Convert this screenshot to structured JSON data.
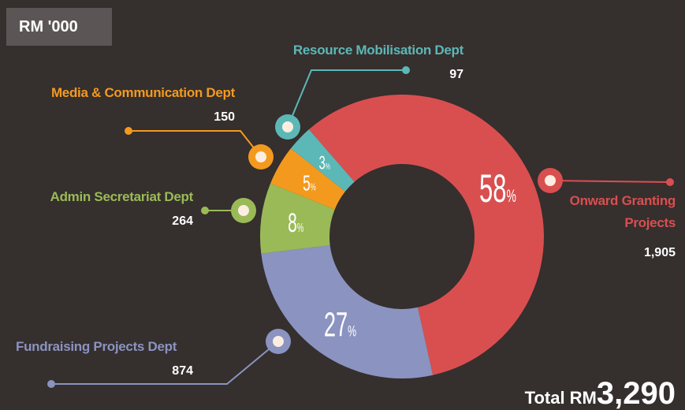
{
  "chart_data": {
    "type": "donut",
    "badge": "RM '000",
    "categories": [
      "Onward Granting Projects",
      "Fundraising Projects Dept",
      "Admin Secretariat Dept",
      "Media & Communication Dept",
      "Resource Mobilisation Dept"
    ],
    "values": [
      1905,
      874,
      264,
      150,
      97
    ],
    "value_labels": [
      "1,905",
      "874",
      "264",
      "150",
      "97"
    ],
    "percents": [
      58,
      27,
      8,
      5,
      3
    ],
    "percent_unit": "%",
    "colors": [
      "#d94f4f",
      "#8b93c0",
      "#9aba57",
      "#f39a1e",
      "#5cb8b6"
    ],
    "total_label": "Total RM",
    "total": 3290,
    "total_value_label": "3,290"
  }
}
